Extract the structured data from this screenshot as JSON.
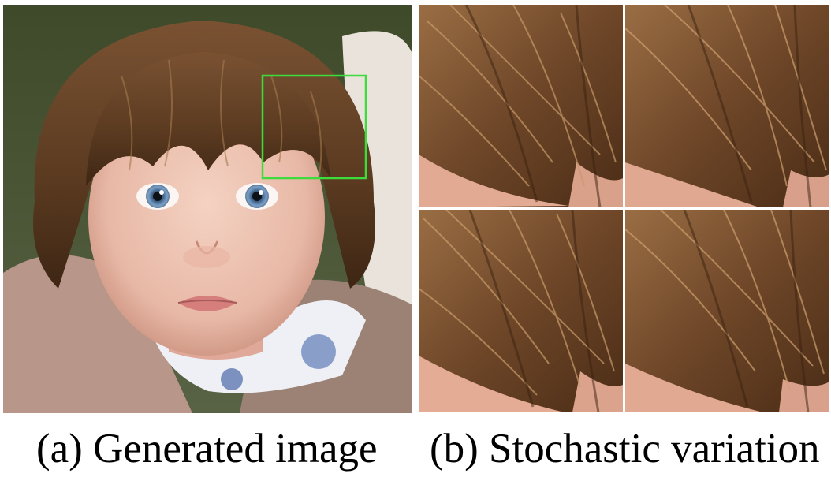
{
  "figure": {
    "panel_a": {
      "caption": "(a) Generated image",
      "image": "generated-face-photo",
      "highlight_color": "#3ddc3d"
    },
    "panel_b": {
      "caption": "(b) Stochastic variation",
      "image": "hair-crop-variations",
      "tile_count": 4
    }
  }
}
